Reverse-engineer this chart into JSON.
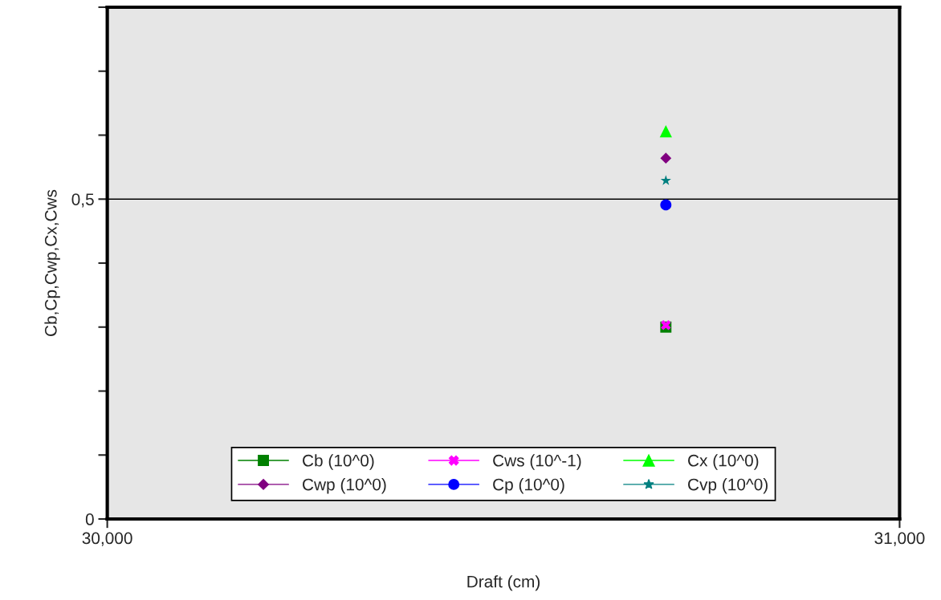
{
  "chart_data": {
    "type": "scatter",
    "xlabel": "Draft (cm)",
    "ylabel": "Cb,Cp,Cwp,Cx,Cws",
    "x": [
      30705
    ],
    "series": [
      {
        "name": "Cb (10^0)",
        "color": "#008000",
        "marker": "square",
        "values": [
          0.3
        ]
      },
      {
        "name": "Cwp (10^0)",
        "color": "#800080",
        "marker": "diamond",
        "values": [
          0.564
        ]
      },
      {
        "name": "Cws (10^-1)",
        "color": "#ff00ff",
        "marker": "cross",
        "values": [
          0.303
        ]
      },
      {
        "name": "Cp (10^0)",
        "color": "#0000ff",
        "marker": "circle",
        "values": [
          0.491
        ]
      },
      {
        "name": "Cx (10^0)",
        "color": "#00ff00",
        "marker": "triangle",
        "values": [
          0.606
        ]
      },
      {
        "name": "Cvp (10^0)",
        "color": "#008080",
        "marker": "star",
        "values": [
          0.529
        ]
      }
    ],
    "xlim": [
      30000,
      31000
    ],
    "xticks": [
      {
        "value": 30000,
        "label": "30,000"
      },
      {
        "value": 31000,
        "label": "31,000"
      }
    ],
    "ylim": [
      0,
      0.8
    ],
    "yticks": [
      0,
      {
        "value": 0.1,
        "label": null
      },
      {
        "value": 0.2,
        "label": null
      },
      {
        "value": 0.3,
        "label": null
      },
      {
        "value": 0.4,
        "label": null
      },
      {
        "value": 0.5,
        "label": "0,5"
      },
      {
        "value": 0.6,
        "label": null
      },
      {
        "value": 0.7,
        "label": null
      },
      {
        "value": 0.8,
        "label": null
      }
    ],
    "ref_lines": [
      {
        "axis": "y",
        "value": 0.5,
        "color": "#000000"
      }
    ],
    "legend": "bottom",
    "grid": false
  }
}
